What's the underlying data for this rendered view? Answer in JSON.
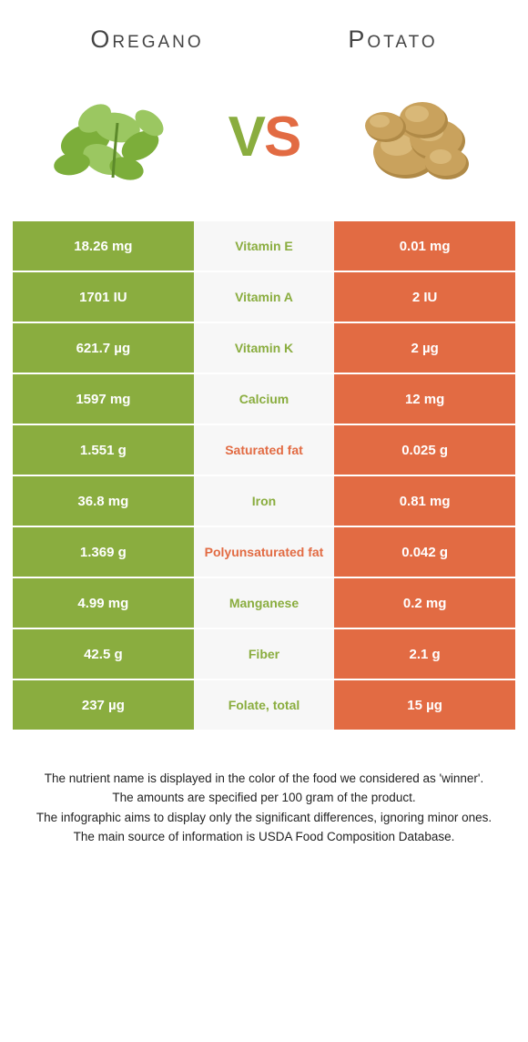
{
  "header": {
    "left_title": "Oregano",
    "right_title": "Potato"
  },
  "vs": {
    "v": "V",
    "s": "S"
  },
  "colors": {
    "left_food": "#8aad3f",
    "right_food": "#e26b43",
    "mid_bg": "#f7f7f7",
    "mid_text_green": "#8aad3f",
    "mid_text_orange": "#e26b43"
  },
  "rows": [
    {
      "left": "18.26 mg",
      "mid": "Vitamin E",
      "right": "0.01 mg",
      "winner": "left"
    },
    {
      "left": "1701 IU",
      "mid": "Vitamin A",
      "right": "2 IU",
      "winner": "left"
    },
    {
      "left": "621.7 µg",
      "mid": "Vitamin K",
      "right": "2 µg",
      "winner": "left"
    },
    {
      "left": "1597 mg",
      "mid": "Calcium",
      "right": "12 mg",
      "winner": "left"
    },
    {
      "left": "1.551 g",
      "mid": "Saturated fat",
      "right": "0.025 g",
      "winner": "right"
    },
    {
      "left": "36.8 mg",
      "mid": "Iron",
      "right": "0.81 mg",
      "winner": "left"
    },
    {
      "left": "1.369 g",
      "mid": "Polyunsaturated fat",
      "right": "0.042 g",
      "winner": "right"
    },
    {
      "left": "4.99 mg",
      "mid": "Manganese",
      "right": "0.2 mg",
      "winner": "left"
    },
    {
      "left": "42.5 g",
      "mid": "Fiber",
      "right": "2.1 g",
      "winner": "left"
    },
    {
      "left": "237 µg",
      "mid": "Folate, total",
      "right": "15 µg",
      "winner": "left"
    }
  ],
  "footer": {
    "line1": "The nutrient name is displayed in the color of the food we considered as 'winner'.",
    "line2": "The amounts are specified per 100 gram of the product.",
    "line3": "The infographic aims to display only the significant differences, ignoring minor ones.",
    "line4": "The main source of information is USDA Food Composition Database."
  }
}
